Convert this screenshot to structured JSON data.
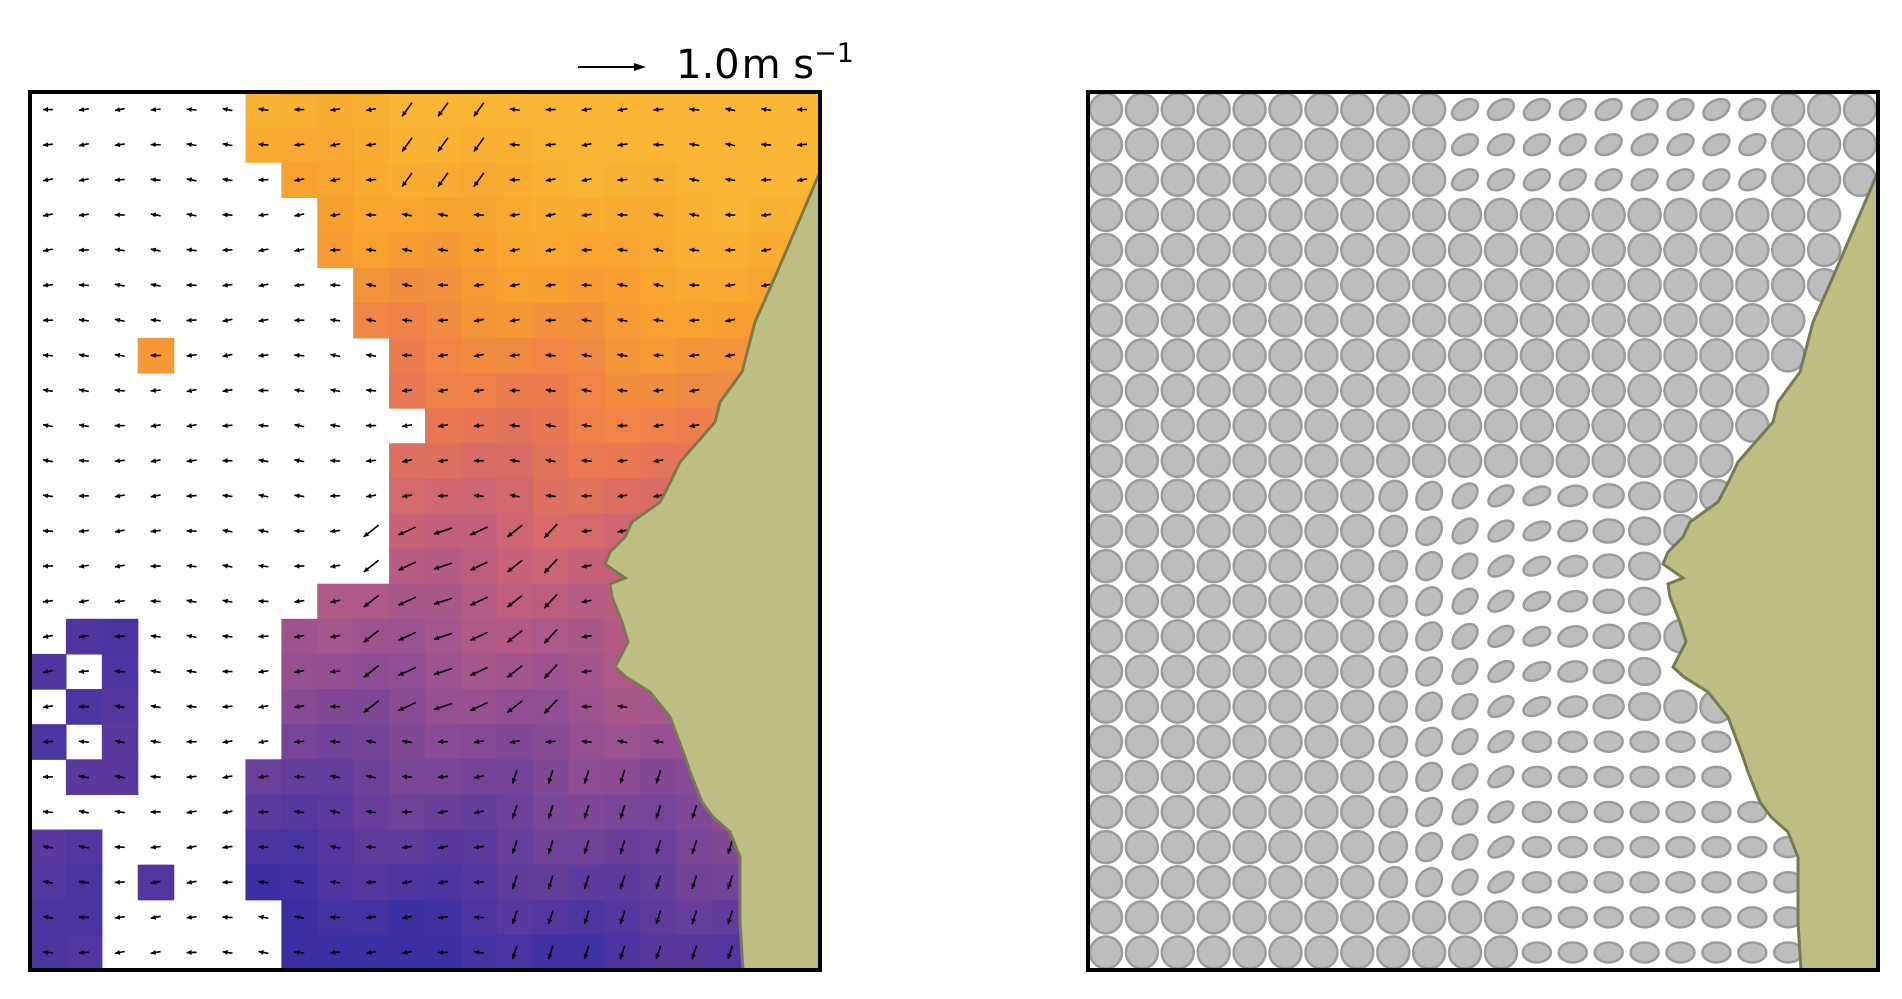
{
  "quiver_key": {
    "value": "1.0",
    "unit": "m s",
    "exponent": "−1"
  },
  "colors": {
    "land": "#bdbf82",
    "land_edge": "#777c4e",
    "ellipse_fill": "#bdbdbd",
    "ellipse_edge": "#9b9b9b",
    "frame": "#000000",
    "arrow": "#000000",
    "colormap": [
      "#3b2fa3",
      "#6a3f9a",
      "#9a5291",
      "#c7617a",
      "#ec7a4f",
      "#f7a02f",
      "#fab634"
    ]
  },
  "chart_data": [
    {
      "type": "heatmap",
      "title": "",
      "overlay": "quiver",
      "grid": {
        "cols": 22,
        "rows": 25
      },
      "color_scale": "purple-to-orange"
    },
    {
      "type": "scatter",
      "title": "",
      "glyph": "ellipse",
      "grid": {
        "cols": 22,
        "rows": 25
      }
    }
  ]
}
